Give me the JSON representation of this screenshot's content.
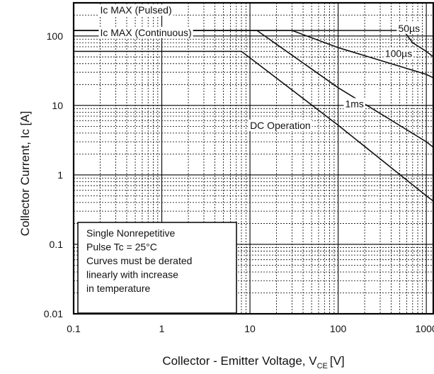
{
  "chart_data": {
    "type": "line",
    "title": "",
    "xlabel": "Collector - Emitter Voltage, V",
    "xlabel_sub": "CE",
    "xlabel_unit": "[V]",
    "ylabel": "Collector Current, Ic [A]",
    "xscale": "log",
    "yscale": "log",
    "xlim": [
      0.1,
      1200
    ],
    "ylim": [
      0.01,
      300
    ],
    "grid": true,
    "x_ticks": [
      {
        "value": 0.1,
        "label": "0.1"
      },
      {
        "value": 1,
        "label": "1"
      },
      {
        "value": 10,
        "label": "10"
      },
      {
        "value": 100,
        "label": "100"
      },
      {
        "value": 1000,
        "label": "1000"
      }
    ],
    "y_ticks": [
      {
        "value": 0.01,
        "label": "0.01"
      },
      {
        "value": 0.1,
        "label": "0.1"
      },
      {
        "value": 1,
        "label": "1"
      },
      {
        "value": 10,
        "label": "10"
      },
      {
        "value": 100,
        "label": "100"
      }
    ],
    "series": [
      {
        "name": "50µs",
        "x": [
          0.1,
          550,
          700,
          1000,
          1200
        ],
        "y": [
          120,
          120,
          80,
          60,
          50
        ]
      },
      {
        "name": "100µs",
        "x": [
          0.1,
          30,
          100,
          1000,
          1200
        ],
        "y": [
          120,
          120,
          68,
          28,
          25
        ]
      },
      {
        "name": "1ms",
        "x": [
          0.1,
          12,
          100,
          1000,
          1200
        ],
        "y": [
          120,
          120,
          18,
          3.0,
          2.5
        ]
      },
      {
        "name": "DC Operation",
        "x": [
          0.1,
          8,
          100,
          1000,
          1200
        ],
        "y": [
          60,
          60,
          5.2,
          0.5,
          0.42
        ]
      }
    ],
    "annotations": [
      {
        "text": "Ic MAX (Pulsed)",
        "x": 0.2,
        "y": 210
      },
      {
        "text": "Ic MAX (Continuous)",
        "x": 0.2,
        "y": 100
      },
      {
        "text": "50µs",
        "x": 480,
        "y": 115
      },
      {
        "text": "100µs",
        "x": 340,
        "y": 50
      },
      {
        "text": "1ms",
        "x": 120,
        "y": 9.4
      },
      {
        "text": "DC Operation",
        "x": 10,
        "y": 4.6
      }
    ],
    "note_lines": [
      "Single Nonrepetitive",
      "Pulse Tc = 25°C",
      "Curves must be derated",
      "linearly with increase",
      "in temperature"
    ]
  }
}
